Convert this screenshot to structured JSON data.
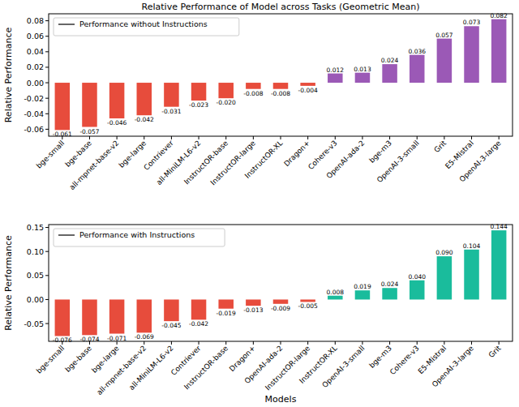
{
  "chart_data": [
    {
      "type": "bar",
      "title": "Relative Performance of Model across Tasks (Geometric Mean)",
      "y_label": "Relative Performance",
      "categories": [
        "bge-small",
        "bge-base",
        "all-mpnet-base-v2",
        "bge-large",
        "Contriever",
        "all-MiniLM-L6-v2",
        "InstructOR-base",
        "InstructOR-large",
        "InstructOR-XL",
        "Dragon+",
        "Cohere-v3",
        "OpenAI-ada-2",
        "bge-m3",
        "OpenAI-3-small",
        "Grit",
        "E5-Mistral",
        "OpenAI-3-large"
      ],
      "series": [
        {
          "name": "Performance without Instructions",
          "values": [
            -0.061,
            -0.057,
            -0.046,
            -0.042,
            -0.031,
            -0.023,
            -0.02,
            -0.008,
            -0.008,
            -0.004,
            0.012,
            0.013,
            0.024,
            0.036,
            0.057,
            0.073,
            0.082
          ],
          "value_labels": [
            "-0.061",
            "-0.057",
            "-0.046",
            "-0.042",
            "-0.031",
            "-0.023",
            "-0.020",
            "-0.008",
            "-0.008",
            "-0.004",
            "0.012",
            "0.013",
            "0.024",
            "0.036",
            "0.057",
            "0.073",
            "0.082"
          ],
          "colors": [
            "#e74c3c",
            "#e74c3c",
            "#e74c3c",
            "#e74c3c",
            "#e74c3c",
            "#e74c3c",
            "#e74c3c",
            "#e74c3c",
            "#e74c3c",
            "#e74c3c",
            "#9b59b6",
            "#9b59b6",
            "#9b59b6",
            "#9b59b6",
            "#9b59b6",
            "#9b59b6",
            "#9b59b6"
          ]
        }
      ],
      "ylim": [
        -0.069,
        0.089
      ],
      "yticks": [
        -0.06,
        -0.04,
        -0.02,
        {
          "value": 0,
          "label": "0.00"
        },
        0.02,
        0.04,
        0.06,
        0.08
      ],
      "data_labels": true,
      "legend": "upper left",
      "grid": false
    },
    {
      "type": "bar",
      "y_label": "Relative Performance",
      "x_label": "Models",
      "categories": [
        "bge-small",
        "bge-base",
        "bge-large",
        "all-mpnet-base-v2",
        "all-MiniLM-L6-v2",
        "Contriever",
        "InstructOR-base",
        "Dragon+",
        "OpenAI-ada-2",
        "InstructOR-large",
        "InstructOR-XL",
        "OpenAI-3-small",
        "bge-m3",
        "Cohere-v3",
        "E5-Mistral",
        "OpenAI-3-large",
        "Grit"
      ],
      "series": [
        {
          "name": "Performance with Instructions",
          "values": [
            -0.076,
            -0.074,
            -0.071,
            -0.069,
            -0.045,
            -0.042,
            -0.019,
            -0.013,
            -0.009,
            -0.005,
            0.008,
            0.019,
            0.024,
            0.04,
            0.09,
            0.104,
            0.144
          ],
          "value_labels": [
            "-0.076",
            "-0.074",
            "-0.071",
            "-0.069",
            "-0.045",
            "-0.042",
            "-0.019",
            "-0.013",
            "-0.009",
            "-0.005",
            "0.008",
            "0.019",
            "0.024",
            "0.040",
            "0.090",
            "0.104",
            "0.144"
          ],
          "colors": [
            "#e74c3c",
            "#e74c3c",
            "#e74c3c",
            "#e74c3c",
            "#e74c3c",
            "#e74c3c",
            "#e74c3c",
            "#e74c3c",
            "#e74c3c",
            "#e74c3c",
            "#1abc9c",
            "#1abc9c",
            "#1abc9c",
            "#1abc9c",
            "#1abc9c",
            "#1abc9c",
            "#1abc9c"
          ]
        }
      ],
      "ylim": [
        -0.087,
        0.156
      ],
      "yticks": [
        -0.05,
        {
          "value": 0,
          "label": "0.00"
        },
        0.05,
        {
          "value": 0.1,
          "label": "0.10"
        },
        0.15
      ],
      "data_labels": true,
      "legend": "upper left",
      "grid": false
    }
  ]
}
